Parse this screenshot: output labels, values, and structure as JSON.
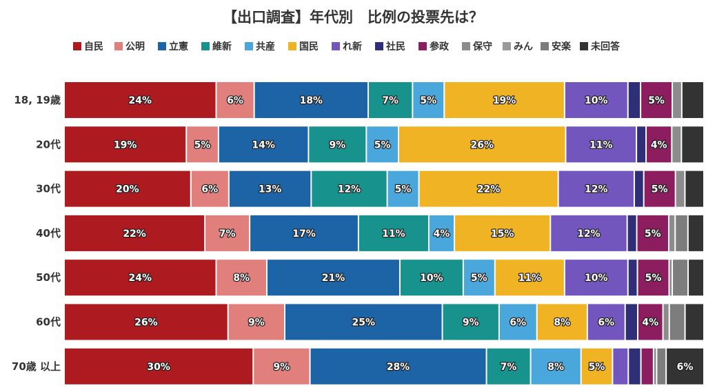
{
  "chart_data": {
    "type": "bar",
    "orientation": "horizontal",
    "stacked": true,
    "title": "【出口調査】年代別　比例の投票先は？",
    "legend_position": "top",
    "categories": [
      "18, 19歳",
      "20代",
      "30代",
      "40代",
      "50代",
      "60代",
      "70歳 以上"
    ],
    "series": [
      {
        "name": "自民",
        "color": "#ad1a1f",
        "values": [
          24,
          19,
          20,
          22,
          24,
          26,
          30
        ],
        "labels": [
          "24%",
          "19%",
          "20%",
          "22%",
          "24%",
          "26%",
          "30%"
        ]
      },
      {
        "name": "公明",
        "color": "#e07f7c",
        "values": [
          6,
          5,
          6,
          7,
          8,
          9,
          9
        ],
        "labels": [
          "6%",
          "5%",
          "6%",
          "7%",
          "8%",
          "9%",
          "9%"
        ]
      },
      {
        "name": "立憲",
        "color": "#1c64a5",
        "values": [
          18,
          14,
          13,
          17,
          21,
          25,
          28
        ],
        "labels": [
          "18%",
          "14%",
          "13%",
          "17%",
          "21%",
          "25%",
          "28%"
        ]
      },
      {
        "name": "維新",
        "color": "#17928c",
        "values": [
          7,
          9,
          12,
          11,
          10,
          9,
          7
        ],
        "labels": [
          "7%",
          "9%",
          "12%",
          "11%",
          "10%",
          "9%",
          "7%"
        ]
      },
      {
        "name": "共産",
        "color": "#4aa7db",
        "values": [
          5,
          5,
          5,
          4,
          5,
          6,
          8
        ],
        "labels": [
          "5%",
          "5%",
          "5%",
          "4%",
          "5%",
          "6%",
          "8%"
        ]
      },
      {
        "name": "国民",
        "color": "#f0b323",
        "values": [
          19,
          26,
          22,
          15,
          11,
          8,
          5
        ],
        "labels": [
          "19%",
          "26%",
          "22%",
          "15%",
          "11%",
          "8%",
          "5%"
        ]
      },
      {
        "name": "れ新",
        "color": "#7256bd",
        "values": [
          10,
          11,
          12,
          12,
          10,
          6,
          2.5
        ],
        "labels": [
          "10%",
          "11%",
          "12%",
          "12%",
          "10%",
          "6%",
          ""
        ]
      },
      {
        "name": "社民",
        "color": "#2f2f78",
        "values": [
          2,
          1.5,
          1.5,
          1.5,
          1.5,
          2,
          2
        ],
        "labels": [
          "",
          "",
          "",
          "",
          "",
          "",
          ""
        ]
      },
      {
        "name": "参政",
        "color": "#8c1d5e",
        "values": [
          5,
          4,
          5,
          5,
          5,
          4,
          2
        ],
        "labels": [
          "5%",
          "4%",
          "5%",
          "5%",
          "5%",
          "4%",
          ""
        ]
      },
      {
        "name": "保守",
        "color": "#8c8c8c",
        "values": [
          1.5,
          1.5,
          1.5,
          1,
          0.5,
          1,
          0.5
        ],
        "labels": [
          "",
          "",
          "",
          "",
          "",
          "",
          ""
        ]
      },
      {
        "name": "みん",
        "color": "#9a9a9a",
        "values": [
          0,
          0,
          0,
          0,
          0,
          0,
          0
        ],
        "labels": [
          "",
          "",
          "",
          "",
          "",
          "",
          ""
        ]
      },
      {
        "name": "安楽",
        "color": "#7d7d7d",
        "values": [
          0,
          0,
          0,
          2,
          2.5,
          2.5,
          1.5
        ],
        "labels": [
          "",
          "",
          "",
          "",
          "",
          "",
          ""
        ]
      },
      {
        "name": "未回答",
        "color": "#333333",
        "values": [
          3.5,
          3.5,
          3,
          2.5,
          2.5,
          3,
          6
        ],
        "labels": [
          "",
          "",
          "",
          "",
          "",
          "",
          "6%"
        ]
      }
    ]
  }
}
